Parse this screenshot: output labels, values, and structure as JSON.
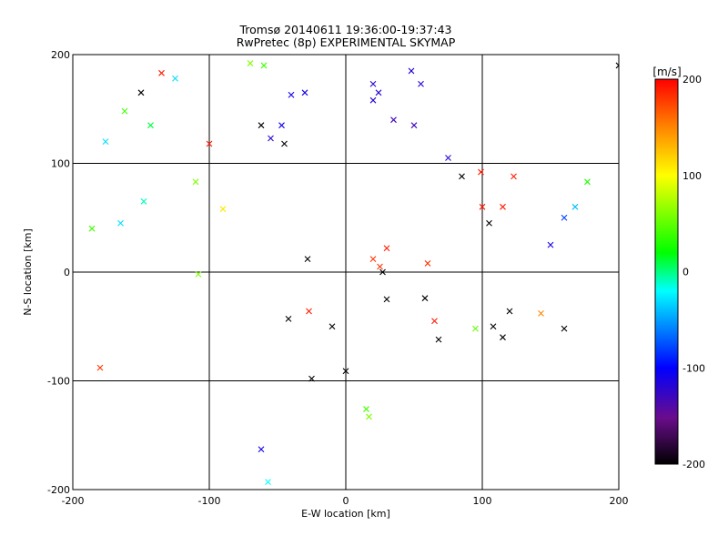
{
  "chart_data": [
    {
      "type": "scatter",
      "title": "Tromsø 20140611 19:36:00-19:37:43",
      "subtitle": "RwPretec (8p) EXPERIMENTAL SKYMAP",
      "xlabel": "E-W location [km]",
      "ylabel": "N-S location [km]",
      "xlim": [
        -200,
        200
      ],
      "ylim": [
        -200,
        200
      ],
      "x_ticks": [
        "-200",
        "-100",
        "0",
        "100",
        "200"
      ],
      "y_ticks": [
        "-200",
        "-100",
        "0",
        "100",
        "200"
      ],
      "grid": true,
      "marker_legend": "small dots and x markers colored by velocity",
      "points": [
        {
          "x": -180,
          "y": -88,
          "v": 180,
          "m": "x"
        },
        {
          "x": -100,
          "y": 118,
          "v": 190,
          "m": "x"
        },
        {
          "x": -62,
          "y": -163,
          "v": -110,
          "m": "x"
        },
        {
          "x": -57,
          "y": -193,
          "v": -20,
          "m": "x"
        },
        {
          "x": 15,
          "y": -126,
          "v": 40,
          "m": "x"
        },
        {
          "x": 17,
          "y": -133,
          "v": 60,
          "m": "x"
        },
        {
          "x": -42,
          "y": -43,
          "v": -200,
          "m": "x"
        },
        {
          "x": -25,
          "y": -98,
          "v": -200,
          "m": "x"
        },
        {
          "x": -10,
          "y": -50,
          "v": -200,
          "m": "x"
        },
        {
          "x": 0,
          "y": -91,
          "v": -200,
          "m": "x"
        },
        {
          "x": 27,
          "y": 0,
          "v": -200,
          "m": "x"
        },
        {
          "x": 20,
          "y": 12,
          "v": 180,
          "m": "x"
        },
        {
          "x": 60,
          "y": 8,
          "v": 180,
          "m": "x"
        },
        {
          "x": 65,
          "y": -45,
          "v": 190,
          "m": "x"
        },
        {
          "x": 68,
          "y": -62,
          "v": -200,
          "m": "x"
        },
        {
          "x": 58,
          "y": -24,
          "v": -200,
          "m": "x"
        },
        {
          "x": 120,
          "y": -36,
          "v": -200,
          "m": "x"
        },
        {
          "x": 108,
          "y": -50,
          "v": -200,
          "m": "x"
        },
        {
          "x": 143,
          "y": -38,
          "v": 150,
          "m": "x"
        },
        {
          "x": 160,
          "y": -52,
          "v": -200,
          "m": "x"
        },
        {
          "x": 115,
          "y": 60,
          "v": 190,
          "m": "x"
        },
        {
          "x": 123,
          "y": 88,
          "v": 190,
          "m": "x"
        },
        {
          "x": 99,
          "y": 92,
          "v": 190,
          "m": "x"
        },
        {
          "x": 150,
          "y": 25,
          "v": -110,
          "m": "x"
        },
        {
          "x": 160,
          "y": 50,
          "v": -80,
          "m": "x"
        },
        {
          "x": 168,
          "y": 60,
          "v": -40,
          "m": "x"
        },
        {
          "x": 177,
          "y": 83,
          "v": 30,
          "m": "x"
        },
        {
          "x": 105,
          "y": 45,
          "v": -200,
          "m": "x"
        },
        {
          "x": 55,
          "y": 173,
          "v": -120,
          "m": "x"
        },
        {
          "x": 48,
          "y": 185,
          "v": -120,
          "m": "x"
        },
        {
          "x": 20,
          "y": 173,
          "v": -120,
          "m": "x"
        },
        {
          "x": 20,
          "y": 158,
          "v": -120,
          "m": "x"
        },
        {
          "x": 24,
          "y": 165,
          "v": -120,
          "m": "x"
        },
        {
          "x": 35,
          "y": 140,
          "v": -130,
          "m": "x"
        },
        {
          "x": 50,
          "y": 135,
          "v": -130,
          "m": "x"
        },
        {
          "x": -62,
          "y": 135,
          "v": -200,
          "m": "x"
        },
        {
          "x": -55,
          "y": 123,
          "v": -120,
          "m": "x"
        },
        {
          "x": -45,
          "y": 118,
          "v": -200,
          "m": "x"
        },
        {
          "x": -30,
          "y": 165,
          "v": -110,
          "m": "x"
        },
        {
          "x": -40,
          "y": 163,
          "v": -110,
          "m": "x"
        },
        {
          "x": -47,
          "y": 135,
          "v": -110,
          "m": "x"
        },
        {
          "x": -60,
          "y": 190,
          "v": 40,
          "m": "x"
        },
        {
          "x": -70,
          "y": 192,
          "v": 60,
          "m": "x"
        },
        {
          "x": -125,
          "y": 178,
          "v": -30,
          "m": "x"
        },
        {
          "x": -135,
          "y": 183,
          "v": 190,
          "m": "x"
        },
        {
          "x": -150,
          "y": 165,
          "v": -200,
          "m": "x"
        },
        {
          "x": -162,
          "y": 148,
          "v": 40,
          "m": "x"
        },
        {
          "x": -143,
          "y": 135,
          "v": 10,
          "m": "x"
        },
        {
          "x": -176,
          "y": 120,
          "v": -30,
          "m": "x"
        },
        {
          "x": -165,
          "y": 45,
          "v": -30,
          "m": "x"
        },
        {
          "x": -148,
          "y": 65,
          "v": -10,
          "m": "x"
        },
        {
          "x": -186,
          "y": 40,
          "v": 40,
          "m": "x"
        },
        {
          "x": -108,
          "y": -2,
          "v": 60,
          "m": "x"
        },
        {
          "x": -110,
          "y": 83,
          "v": 60,
          "m": "x"
        },
        {
          "x": -90,
          "y": 58,
          "v": 110,
          "m": "x"
        },
        {
          "x": 25,
          "y": 5,
          "v": 180,
          "m": "x"
        },
        {
          "x": 30,
          "y": 22,
          "v": 190,
          "m": "x"
        },
        {
          "x": -28,
          "y": 12,
          "v": -200,
          "m": "x"
        },
        {
          "x": -27,
          "y": -36,
          "v": 190,
          "m": "x"
        },
        {
          "x": 100,
          "y": 60,
          "v": 190,
          "m": "x"
        },
        {
          "x": 85,
          "y": 88,
          "v": -200,
          "m": "x"
        },
        {
          "x": 75,
          "y": 105,
          "v": -120,
          "m": "x"
        },
        {
          "x": 200,
          "y": 190,
          "v": -200,
          "m": "x"
        },
        {
          "x": 30,
          "y": -25,
          "v": -200,
          "m": "x"
        },
        {
          "x": 95,
          "y": -52,
          "v": 50,
          "m": "x"
        },
        {
          "x": 115,
          "y": -60,
          "v": -200,
          "m": "x"
        }
      ]
    },
    {
      "type": "heatmap",
      "title": "[m/s]",
      "range": [
        -200,
        200
      ],
      "ticks": [
        "200",
        "100",
        "0",
        "-100",
        "-200"
      ],
      "colormap": [
        "#000000",
        "#6a0c8c",
        "#0000ff",
        "#00bfff",
        "#00ffff",
        "#00ff00",
        "#ffff00",
        "#ff8000",
        "#ff0000"
      ]
    }
  ]
}
